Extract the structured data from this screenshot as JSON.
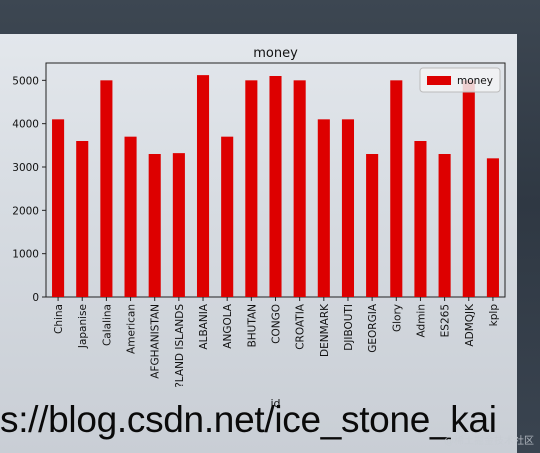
{
  "chart_data": {
    "type": "bar",
    "title": "money",
    "xlabel": "id",
    "ylabel": "",
    "ylim": [
      0,
      5400
    ],
    "yticks": [
      0,
      1000,
      2000,
      3000,
      4000,
      5000
    ],
    "categories": [
      "China",
      "Japanise",
      "Calalina",
      "American",
      "AFGHANISTAN",
      "?LAND ISLANDS",
      "ALBANIA",
      "ANGOLA",
      "BHUTAN",
      "CONGO",
      "CROATIA",
      "DENMARK",
      "DJIBOUTI",
      "GEORGIA",
      "Glory",
      "Admin",
      "ES265",
      "ADMQJK",
      "kplp"
    ],
    "series": [
      {
        "name": "money",
        "color": "#dd0000",
        "values": [
          4100,
          3600,
          5000,
          3700,
          3300,
          3320,
          5120,
          3700,
          5000,
          5100,
          5000,
          4100,
          4100,
          3300,
          5000,
          3600,
          3300,
          5000,
          3200
        ]
      }
    ],
    "legend": {
      "position": "top-right"
    },
    "grid": false
  },
  "watermark": {
    "url": "s://blog.csdn.net/ice_stone_kai",
    "small": "@稀土掘金技术社区"
  }
}
